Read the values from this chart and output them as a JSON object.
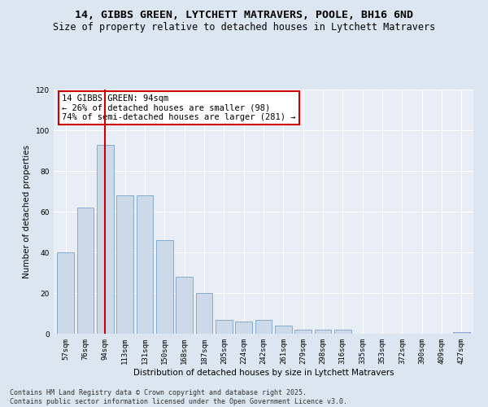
{
  "title_line1": "14, GIBBS GREEN, LYTCHETT MATRAVERS, POOLE, BH16 6ND",
  "title_line2": "Size of property relative to detached houses in Lytchett Matravers",
  "xlabel": "Distribution of detached houses by size in Lytchett Matravers",
  "ylabel": "Number of detached properties",
  "categories": [
    "57sqm",
    "76sqm",
    "94sqm",
    "113sqm",
    "131sqm",
    "150sqm",
    "168sqm",
    "187sqm",
    "205sqm",
    "224sqm",
    "242sqm",
    "261sqm",
    "279sqm",
    "298sqm",
    "316sqm",
    "335sqm",
    "353sqm",
    "372sqm",
    "390sqm",
    "409sqm",
    "427sqm"
  ],
  "values": [
    40,
    62,
    93,
    68,
    68,
    46,
    28,
    20,
    7,
    6,
    7,
    4,
    2,
    2,
    2,
    0,
    0,
    0,
    0,
    0,
    1
  ],
  "bar_color": "#ccd9e8",
  "bar_edge_color": "#88aacc",
  "vline_x": 2,
  "vline_color": "#cc0000",
  "annotation_text": "14 GIBBS GREEN: 94sqm\n← 26% of detached houses are smaller (98)\n74% of semi-detached houses are larger (281) →",
  "annotation_box_color": "#ffffff",
  "annotation_box_edge_color": "#cc0000",
  "ylim": [
    0,
    120
  ],
  "yticks": [
    0,
    20,
    40,
    60,
    80,
    100,
    120
  ],
  "footer_text": "Contains HM Land Registry data © Crown copyright and database right 2025.\nContains public sector information licensed under the Open Government Licence v3.0.",
  "background_color": "#dce6f0",
  "plot_background_color": "#e8eef5",
  "grid_color": "#ffffff",
  "title_fontsize": 9.5,
  "subtitle_fontsize": 8.5,
  "axis_label_fontsize": 7.5,
  "tick_fontsize": 6.5,
  "annotation_fontsize": 7.5,
  "footer_fontsize": 6.0
}
